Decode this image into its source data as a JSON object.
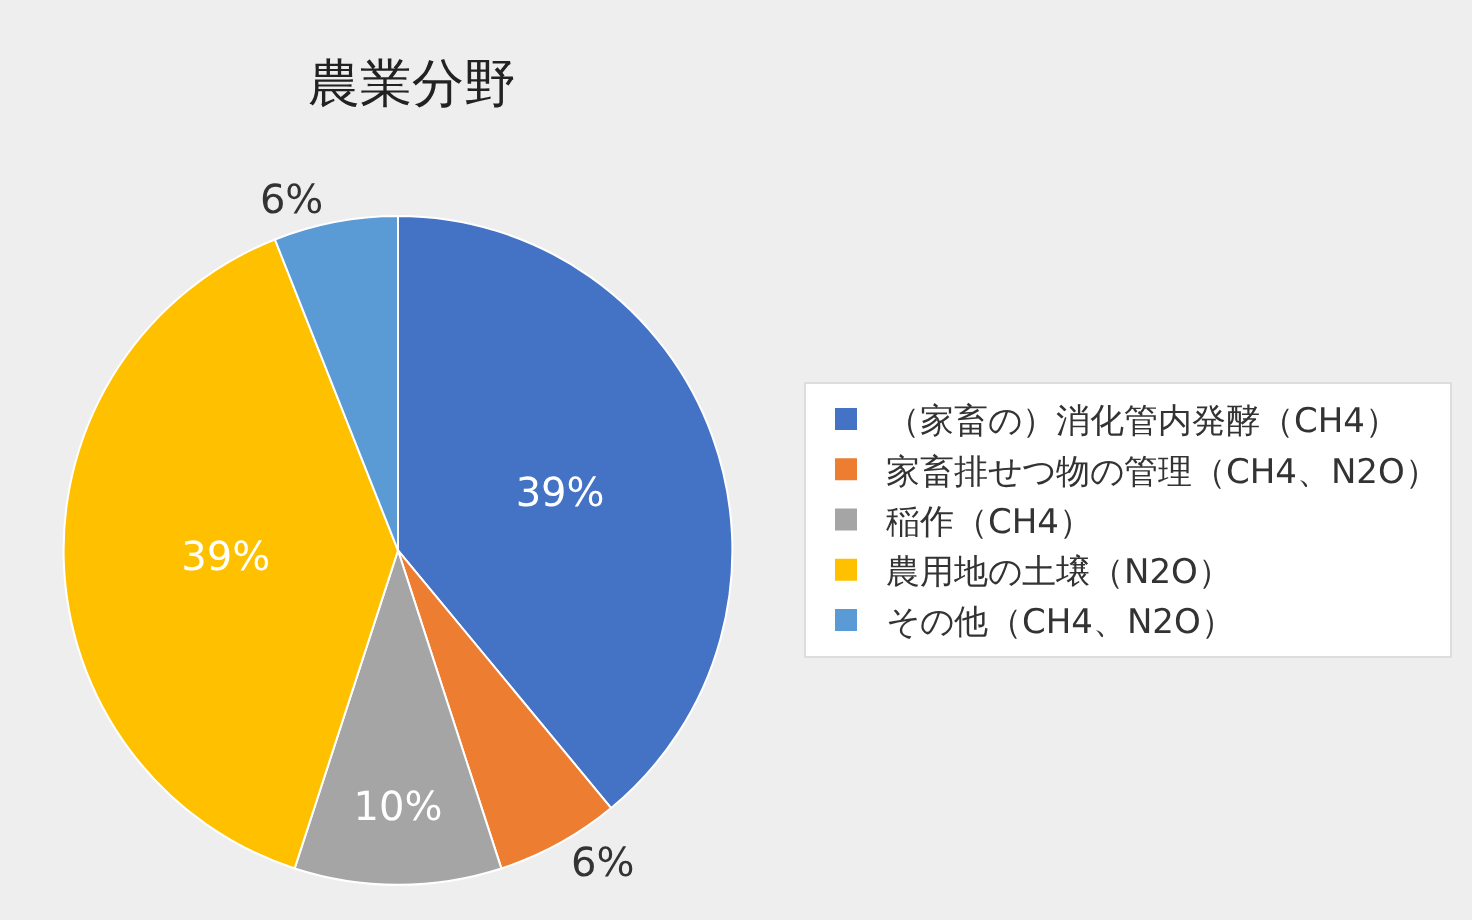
{
  "chart_data": {
    "type": "pie",
    "title": "農業分野",
    "categories": [
      "（家畜の）消化管内発酵（CH4）",
      "家畜排せつ物の管理（CH4、N2O）",
      "稲作（CH4）",
      "農用地の土壌（N2O）",
      "その他（CH4、N2O）"
    ],
    "values": [
      39,
      6,
      10,
      39,
      6
    ],
    "value_labels": [
      "39%",
      "6%",
      "10%",
      "39%",
      "6%"
    ],
    "colors": [
      "#4472c4",
      "#ed7d31",
      "#a5a5a5",
      "#ffc000",
      "#5b9bd5"
    ],
    "legend": "right"
  }
}
